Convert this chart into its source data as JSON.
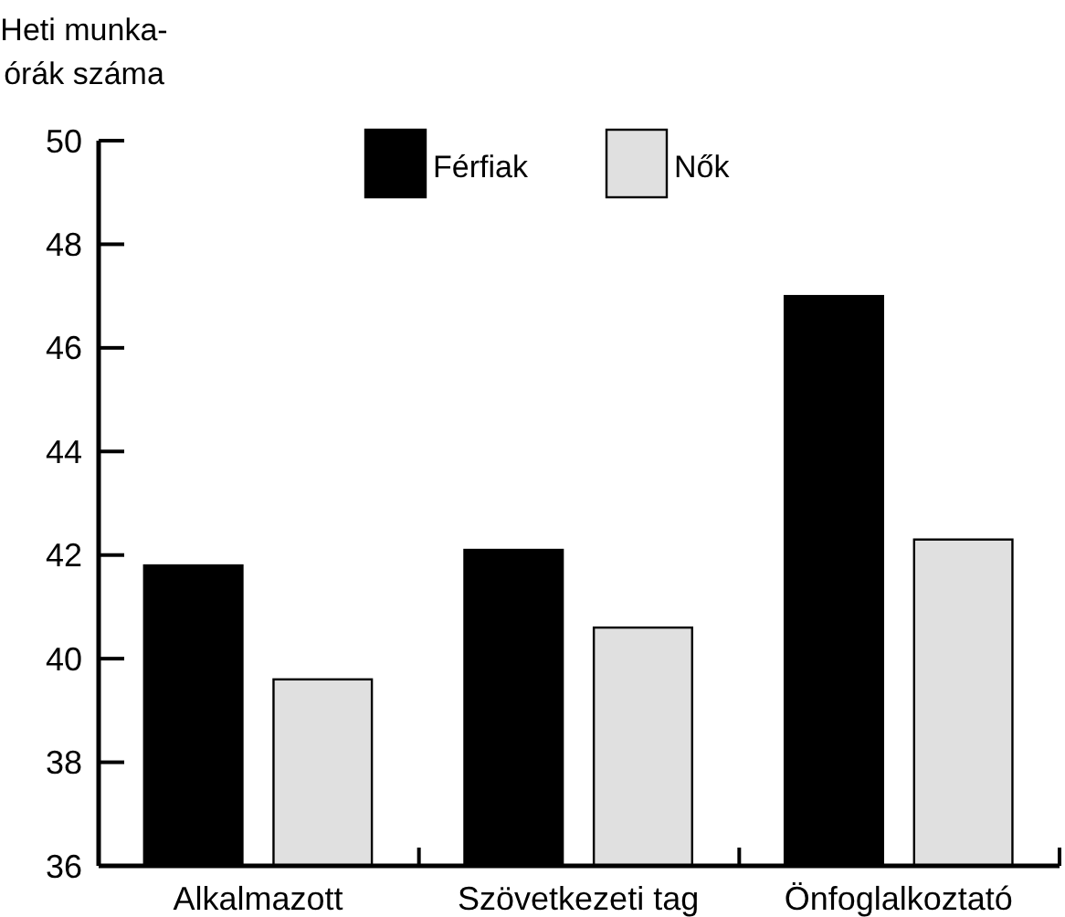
{
  "chart_data": {
    "type": "bar",
    "ylabel": "Heti munka-\nórák száma",
    "categories": [
      "Alkalmazott",
      "Szövetkezeti tag",
      "Önfoglalkoztató"
    ],
    "series": [
      {
        "name": "Férfiak",
        "color": "#000000",
        "values": [
          41.8,
          42.1,
          47.0
        ]
      },
      {
        "name": "Nők",
        "color": "#e0e0e0",
        "values": [
          39.6,
          40.6,
          42.3
        ]
      }
    ],
    "ylim": [
      36,
      50
    ],
    "yticks": [
      36,
      38,
      40,
      42,
      44,
      46,
      48,
      50
    ],
    "grid": false,
    "legend": "top"
  }
}
